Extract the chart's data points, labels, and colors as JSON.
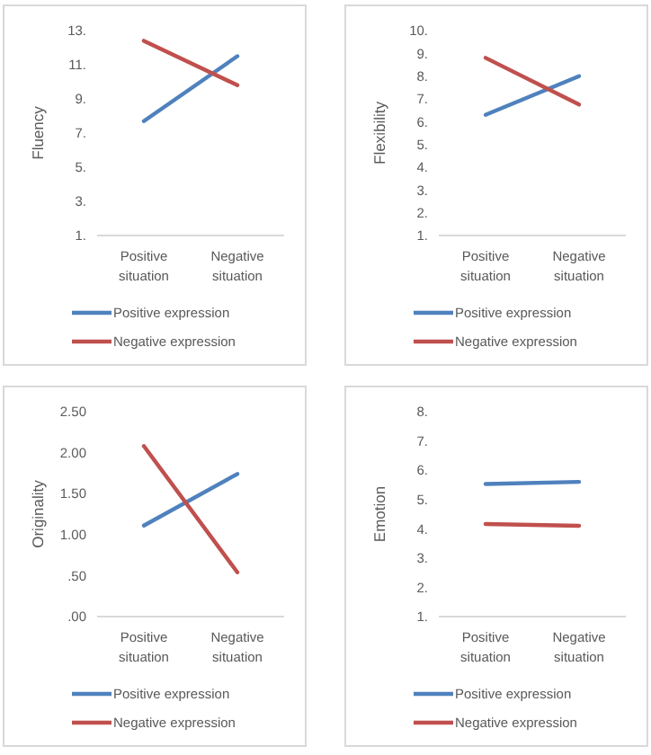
{
  "chart_data": [
    {
      "type": "line",
      "ylabel": "Fluency",
      "categories": [
        "Positive situation",
        "Negative situation"
      ],
      "series": [
        {
          "name": "Positive expression",
          "color": "#4f81bd",
          "values": [
            7.7,
            11.5
          ]
        },
        {
          "name": "Negative expression",
          "color": "#c0504d",
          "values": [
            12.4,
            9.8
          ]
        }
      ],
      "ylim": [
        1,
        13
      ],
      "yticks": [
        {
          "value": 1,
          "label": "1."
        },
        {
          "value": 3,
          "label": "3."
        },
        {
          "value": 5,
          "label": "5."
        },
        {
          "value": 7,
          "label": "7."
        },
        {
          "value": 9,
          "label": "9."
        },
        {
          "value": 11,
          "label": "11."
        },
        {
          "value": 13,
          "label": "13."
        }
      ],
      "legend": "bottom",
      "grid": false
    },
    {
      "type": "line",
      "ylabel": "Flexibility",
      "categories": [
        "Positive situation",
        "Negative situation"
      ],
      "series": [
        {
          "name": "Positive expression",
          "color": "#4f81bd",
          "values": [
            6.3,
            8.0
          ]
        },
        {
          "name": "Negative expression",
          "color": "#c0504d",
          "values": [
            8.8,
            6.75
          ]
        }
      ],
      "ylim": [
        1,
        10
      ],
      "yticks": [
        {
          "value": 1,
          "label": "1."
        },
        {
          "value": 2,
          "label": "2."
        },
        {
          "value": 3,
          "label": "3."
        },
        {
          "value": 4,
          "label": "4."
        },
        {
          "value": 5,
          "label": "5."
        },
        {
          "value": 6,
          "label": "6."
        },
        {
          "value": 7,
          "label": "7."
        },
        {
          "value": 8,
          "label": "8."
        },
        {
          "value": 9,
          "label": "9."
        },
        {
          "value": 10,
          "label": "10."
        }
      ],
      "legend": "bottom",
      "grid": false
    },
    {
      "type": "line",
      "ylabel": "Originality",
      "categories": [
        "Positive situation",
        "Negative situation"
      ],
      "series": [
        {
          "name": "Positive expression",
          "color": "#4f81bd",
          "values": [
            1.11,
            1.74
          ]
        },
        {
          "name": "Negative expression",
          "color": "#c0504d",
          "values": [
            2.08,
            0.54
          ]
        }
      ],
      "ylim": [
        0,
        2.5
      ],
      "yticks": [
        {
          "value": 0,
          "label": ".00"
        },
        {
          "value": 0.5,
          "label": ".50"
        },
        {
          "value": 1,
          "label": "1.00"
        },
        {
          "value": 1.5,
          "label": "1.50"
        },
        {
          "value": 2,
          "label": "2.00"
        },
        {
          "value": 2.5,
          "label": "2.50"
        }
      ],
      "legend": "bottom",
      "grid": false
    },
    {
      "type": "line",
      "ylabel": "Emotion",
      "categories": [
        "Positive situation",
        "Negative situation"
      ],
      "series": [
        {
          "name": "Positive expression",
          "color": "#4f81bd",
          "values": [
            5.53,
            5.6
          ]
        },
        {
          "name": "Negative expression",
          "color": "#c0504d",
          "values": [
            4.16,
            4.1
          ]
        }
      ],
      "ylim": [
        1,
        8
      ],
      "yticks": [
        {
          "value": 1,
          "label": "1."
        },
        {
          "value": 2,
          "label": "2."
        },
        {
          "value": 3,
          "label": "3."
        },
        {
          "value": 4,
          "label": "4."
        },
        {
          "value": 5,
          "label": "5."
        },
        {
          "value": 6,
          "label": "6."
        },
        {
          "value": 7,
          "label": "7."
        },
        {
          "value": 8,
          "label": "8."
        }
      ],
      "legend": "bottom",
      "grid": false
    }
  ]
}
